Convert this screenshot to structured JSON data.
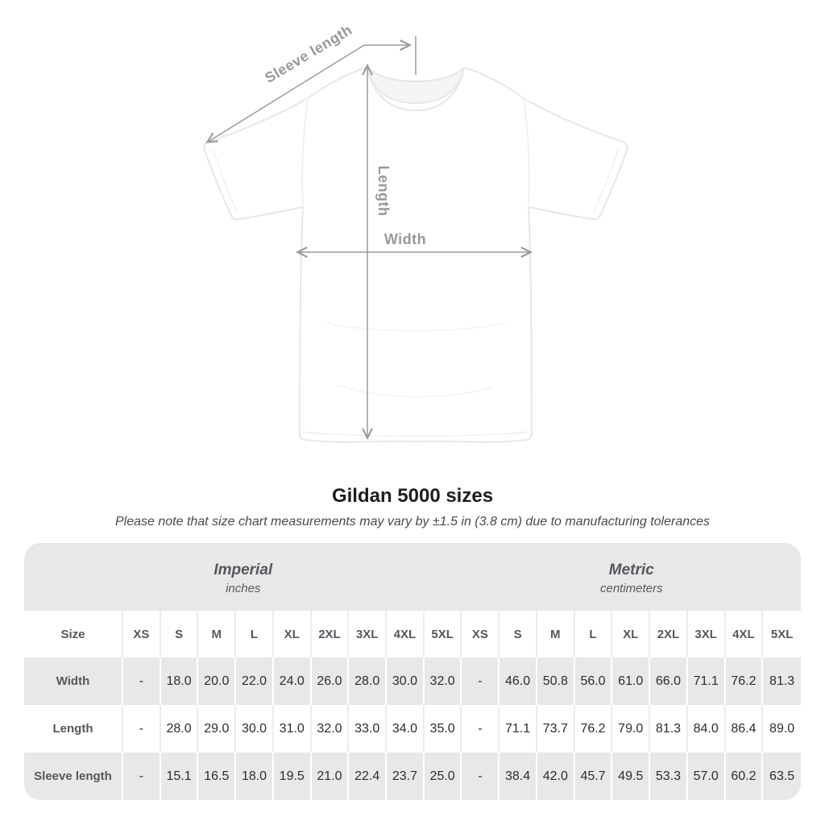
{
  "title": "Gildan 5000 sizes",
  "subtitle": "Please note that size chart measurements may vary by ±1.5 in (3.8 cm) due to manufacturing tolerances",
  "diagram": {
    "labels": {
      "sleeve_length": "Sleeve length",
      "length": "Length",
      "width": "Width"
    },
    "arrow_color": "#9b9b9b",
    "shirt_outline_color": "#e7e7e7"
  },
  "table": {
    "groups": [
      {
        "label": "Imperial",
        "sublabel": "inches"
      },
      {
        "label": "Metric",
        "sublabel": "centimeters"
      }
    ],
    "size_label": "Size",
    "header_sizes": [
      "XS",
      "S",
      "M",
      "L",
      "XL",
      "2XL",
      "3XL",
      "4XL",
      "5XL",
      "XS",
      "S",
      "M",
      "L",
      "XL",
      "2XL",
      "3XL",
      "4XL",
      "5XL"
    ],
    "rows": [
      {
        "label": "Width",
        "values": [
          "-",
          "18.0",
          "20.0",
          "22.0",
          "24.0",
          "26.0",
          "28.0",
          "30.0",
          "32.0",
          "-",
          "46.0",
          "50.8",
          "56.0",
          "61.0",
          "66.0",
          "71.1",
          "76.2",
          "81.3"
        ]
      },
      {
        "label": "Length",
        "values": [
          "-",
          "28.0",
          "29.0",
          "30.0",
          "31.0",
          "32.0",
          "33.0",
          "34.0",
          "35.0",
          "-",
          "71.1",
          "73.7",
          "76.2",
          "79.0",
          "81.3",
          "84.0",
          "86.4",
          "89.0"
        ]
      },
      {
        "label": "Sleeve length",
        "values": [
          "-",
          "15.1",
          "16.5",
          "18.0",
          "19.5",
          "21.0",
          "22.4",
          "23.7",
          "25.0",
          "-",
          "38.4",
          "42.0",
          "45.7",
          "49.5",
          "53.3",
          "57.0",
          "60.2",
          "63.5"
        ]
      }
    ],
    "colors": {
      "stripe": "#e8e8e8",
      "header_text": "#54585d",
      "value_text": "#2d2d2d"
    }
  },
  "chart_data": {
    "type": "table",
    "title": "Gildan 5000 sizes",
    "column_groups": [
      "Imperial (inches)",
      "Metric (centimeters)"
    ],
    "columns": [
      "XS",
      "S",
      "M",
      "L",
      "XL",
      "2XL",
      "3XL",
      "4XL",
      "5XL",
      "XS",
      "S",
      "M",
      "L",
      "XL",
      "2XL",
      "3XL",
      "4XL",
      "5XL"
    ],
    "row_labels": [
      "Width",
      "Length",
      "Sleeve length"
    ],
    "values": [
      [
        "-",
        "18.0",
        "20.0",
        "22.0",
        "24.0",
        "26.0",
        "28.0",
        "30.0",
        "32.0",
        "-",
        "46.0",
        "50.8",
        "56.0",
        "61.0",
        "66.0",
        "71.1",
        "76.2",
        "81.3"
      ],
      [
        "-",
        "28.0",
        "29.0",
        "30.0",
        "31.0",
        "32.0",
        "33.0",
        "34.0",
        "35.0",
        "-",
        "71.1",
        "73.7",
        "76.2",
        "79.0",
        "81.3",
        "84.0",
        "86.4",
        "89.0"
      ],
      [
        "-",
        "15.1",
        "16.5",
        "18.0",
        "19.5",
        "21.0",
        "22.4",
        "23.7",
        "25.0",
        "-",
        "38.4",
        "42.0",
        "45.7",
        "49.5",
        "53.3",
        "57.0",
        "60.2",
        "63.5"
      ]
    ],
    "note": "Please note that size chart measurements may vary by ±1.5 in (3.8 cm) due to manufacturing tolerances"
  }
}
